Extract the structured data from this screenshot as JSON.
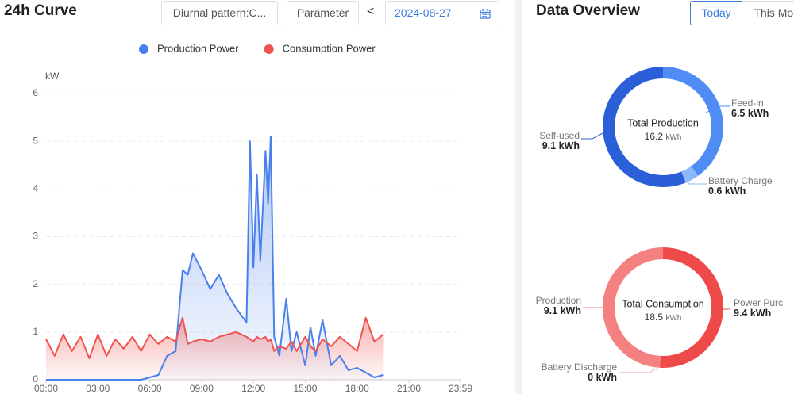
{
  "curve": {
    "title": "24h Curve",
    "pattern_select": "Diurnal pattern:C...",
    "parameter_button": "Parameter",
    "prev_button": "<",
    "date": "2024-08-27",
    "chart": {
      "type": "area",
      "y_label": "kW",
      "x": [
        0,
        0.5,
        1,
        1.5,
        2,
        2.5,
        3,
        3.5,
        4,
        4.5,
        5,
        5.5,
        6,
        6.5,
        7,
        7.5,
        7.9,
        8.2,
        8.5,
        9,
        9.5,
        10,
        10.5,
        11,
        11.6,
        11.8,
        12,
        12.2,
        12.4,
        12.7,
        12.85,
        13,
        13.2,
        13.5,
        13.9,
        14.2,
        14.5,
        15,
        15.3,
        15.6,
        16,
        16.5,
        17,
        17.5,
        18,
        18.5,
        19,
        19.5
      ],
      "xlim": [
        0,
        23.9833
      ],
      "xticks": [
        {
          "value": 0,
          "label": "00:00"
        },
        {
          "value": 3,
          "label": "03:00"
        },
        {
          "value": 6,
          "label": "06:00"
        },
        {
          "value": 9,
          "label": "09:00"
        },
        {
          "value": 12,
          "label": "12:00"
        },
        {
          "value": 15,
          "label": "15:00"
        },
        {
          "value": 18,
          "label": "18:00"
        },
        {
          "value": 21,
          "label": "21:00"
        },
        {
          "value": 23.9833,
          "label": "23:59"
        }
      ],
      "ylim": [
        0,
        6
      ],
      "yticks": [
        0,
        1,
        2,
        3,
        4,
        5,
        6
      ],
      "grid": true,
      "legend": "top",
      "series": [
        {
          "name": "Production Power",
          "color": "#4a80ec",
          "values": [
            0,
            0,
            0,
            0,
            0,
            0,
            0,
            0,
            0,
            0,
            0,
            0,
            0.05,
            0.1,
            0.5,
            0.6,
            2.3,
            2.2,
            2.65,
            2.3,
            1.9,
            2.2,
            1.8,
            1.5,
            1.2,
            5.0,
            2.35,
            4.3,
            2.5,
            4.8,
            3.7,
            5.1,
            0.9,
            0.5,
            1.7,
            0.6,
            1.0,
            0.3,
            1.1,
            0.5,
            1.25,
            0.3,
            0.5,
            0.2,
            0.25,
            0.15,
            0.05,
            0.1
          ]
        },
        {
          "name": "Consumption Power",
          "color": "#ef5350",
          "values": [
            0.85,
            0.5,
            0.95,
            0.6,
            0.9,
            0.45,
            0.95,
            0.5,
            0.85,
            0.65,
            0.9,
            0.6,
            0.95,
            0.75,
            0.9,
            0.8,
            1.3,
            0.75,
            0.8,
            0.85,
            0.8,
            0.9,
            0.95,
            1.0,
            0.9,
            0.85,
            0.8,
            0.9,
            0.85,
            0.9,
            0.8,
            0.85,
            0.6,
            0.7,
            0.65,
            0.8,
            0.6,
            0.9,
            0.7,
            0.6,
            0.85,
            0.7,
            0.9,
            0.75,
            0.6,
            1.3,
            0.8,
            0.95
          ]
        }
      ]
    }
  },
  "overview": {
    "title": "Data Overview",
    "tabs": [
      "Today",
      "This Month"
    ],
    "donuts": [
      {
        "center_label": "Total Production",
        "total": 16.2,
        "unit": "kWh",
        "segments": [
          {
            "name": "Feed-in",
            "value": 6.5,
            "color": "#4f8df5"
          },
          {
            "name": "Battery Charge",
            "value": 0.6,
            "color": "#8db8fa"
          },
          {
            "name": "Self-used",
            "value": 9.1,
            "color": "#2a5fd8"
          }
        ]
      },
      {
        "center_label": "Total Consumption",
        "total": 18.5,
        "unit": "kWh",
        "segments": [
          {
            "name": "Power Purc",
            "value": 9.4,
            "color": "#ee4a4a"
          },
          {
            "name": "Battery Discharge",
            "value": 0,
            "color": "#f7a5a5"
          },
          {
            "name": "Production",
            "value": 9.1,
            "color": "#f58080"
          }
        ]
      }
    ]
  }
}
